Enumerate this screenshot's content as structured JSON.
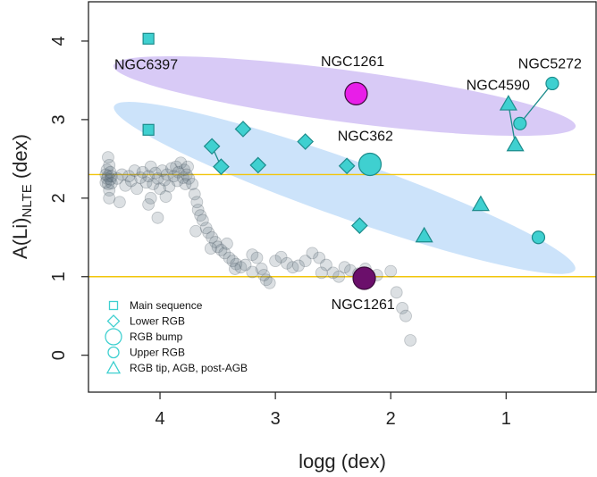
{
  "chart_data": {
    "type": "scatter",
    "xlabel": "logg (dex)",
    "ylabel_main": "A(Li)",
    "ylabel_sub": "NLTE",
    "ylabel_unit": " (dex)",
    "xlim": [
      4.62,
      0.22
    ],
    "ylim": [
      -0.47,
      4.5
    ],
    "x_ticks": [
      4,
      3,
      2,
      1
    ],
    "y_ticks": [
      0,
      1,
      2,
      3,
      4
    ],
    "reference_lines": [
      2.3,
      1.0
    ],
    "colors": {
      "cyan": "#3fd0d0",
      "cyan_edge": "#1c8c8c",
      "magenta": "#e81ee8",
      "purple": "#6b0f6b",
      "gray": "#5e7280",
      "purple_band": "#c9b5f3",
      "blue_band": "#b9d8f8",
      "ref_line": "#f2c50a"
    },
    "bands": [
      {
        "name": "purple-band",
        "cx": 2.4,
        "cy": 3.3,
        "rx": 2.02,
        "ry": 0.33,
        "tilt_deg": 7.5
      },
      {
        "name": "blue-band",
        "cx": 2.4,
        "cy": 2.13,
        "rx": 2.12,
        "ry": 0.37,
        "tilt_deg": 19.5
      }
    ],
    "background_stars": [
      [
        4.47,
        2.3
      ],
      [
        4.47,
        2.2
      ],
      [
        4.46,
        2.36
      ],
      [
        4.46,
        2.25
      ],
      [
        4.45,
        2.28
      ],
      [
        4.45,
        2.18
      ],
      [
        4.44,
        2.42
      ],
      [
        4.44,
        2.1
      ],
      [
        4.43,
        2.24
      ],
      [
        4.43,
        2.33
      ],
      [
        4.45,
        2.52
      ],
      [
        4.44,
        2.0
      ],
      [
        4.42,
        2.28
      ],
      [
        4.42,
        2.19
      ],
      [
        4.37,
        2.25
      ],
      [
        4.33,
        2.3
      ],
      [
        4.3,
        2.16
      ],
      [
        4.27,
        2.28
      ],
      [
        4.25,
        2.22
      ],
      [
        4.22,
        2.35
      ],
      [
        4.2,
        2.12
      ],
      [
        4.17,
        2.26
      ],
      [
        4.15,
        2.33
      ],
      [
        4.12,
        2.2
      ],
      [
        4.1,
        2.28
      ],
      [
        4.08,
        2.4
      ],
      [
        4.06,
        2.18
      ],
      [
        4.04,
        2.32
      ],
      [
        4.02,
        2.25
      ],
      [
        4.0,
        2.12
      ],
      [
        3.98,
        2.35
      ],
      [
        3.96,
        2.23
      ],
      [
        3.94,
        2.3
      ],
      [
        3.92,
        2.15
      ],
      [
        3.9,
        2.38
      ],
      [
        3.88,
        2.28
      ],
      [
        3.86,
        2.4
      ],
      [
        3.85,
        2.22
      ],
      [
        3.84,
        2.33
      ],
      [
        3.82,
        2.45
      ],
      [
        3.8,
        2.26
      ],
      [
        3.79,
        2.36
      ],
      [
        3.78,
        2.18
      ],
      [
        3.77,
        2.3
      ],
      [
        3.76,
        2.4
      ],
      [
        3.75,
        2.25
      ],
      [
        4.08,
        2.0
      ],
      [
        3.95,
        2.02
      ],
      [
        4.02,
        1.75
      ],
      [
        4.35,
        1.95
      ],
      [
        4.1,
        1.92
      ],
      [
        3.72,
        2.18
      ],
      [
        3.7,
        2.05
      ],
      [
        3.68,
        1.95
      ],
      [
        3.67,
        1.85
      ],
      [
        3.65,
        1.78
      ],
      [
        3.63,
        1.72
      ],
      [
        3.6,
        1.62
      ],
      [
        3.58,
        1.56
      ],
      [
        3.55,
        1.5
      ],
      [
        3.52,
        1.44
      ],
      [
        3.5,
        1.38
      ],
      [
        3.47,
        1.34
      ],
      [
        3.44,
        1.3
      ],
      [
        3.4,
        1.24
      ],
      [
        3.37,
        1.2
      ],
      [
        3.34,
        1.16
      ],
      [
        3.3,
        1.12
      ],
      [
        3.26,
        1.15
      ],
      [
        3.2,
        1.28
      ],
      [
        3.16,
        1.24
      ],
      [
        3.12,
        1.1
      ],
      [
        3.08,
        0.96
      ],
      [
        3.05,
        0.92
      ],
      [
        3.0,
        1.2
      ],
      [
        2.95,
        1.25
      ],
      [
        2.9,
        1.17
      ],
      [
        2.85,
        1.12
      ],
      [
        2.8,
        1.14
      ],
      [
        2.74,
        1.2
      ],
      [
        2.68,
        1.3
      ],
      [
        2.62,
        1.24
      ],
      [
        2.56,
        1.15
      ],
      [
        2.5,
        1.05
      ],
      [
        2.45,
        1.0
      ],
      [
        2.4,
        1.12
      ],
      [
        2.35,
        1.08
      ],
      [
        2.28,
        1.04
      ],
      [
        2.22,
        1.1
      ],
      [
        2.12,
        1.02
      ],
      [
        1.95,
        0.8
      ],
      [
        1.9,
        0.6
      ],
      [
        1.87,
        0.5
      ],
      [
        1.83,
        0.19
      ],
      [
        3.69,
        1.58
      ],
      [
        3.56,
        1.36
      ],
      [
        3.1,
        1.02
      ],
      [
        2.0,
        1.07
      ],
      [
        2.6,
        1.05
      ],
      [
        3.42,
        1.42
      ],
      [
        3.35,
        1.1
      ],
      [
        3.2,
        1.06
      ]
    ],
    "series": [
      {
        "name": "Main sequence",
        "marker": "square",
        "points": [
          [
            4.1,
            4.03
          ],
          [
            4.1,
            2.87
          ]
        ]
      },
      {
        "name": "Lower RGB",
        "marker": "diamond",
        "points": [
          [
            3.55,
            2.66
          ],
          [
            3.47,
            2.4
          ],
          [
            3.28,
            2.88
          ],
          [
            3.15,
            2.42
          ],
          [
            2.74,
            2.72
          ],
          [
            2.38,
            2.41
          ],
          [
            2.27,
            1.65
          ]
        ]
      },
      {
        "name": "RGB bump",
        "marker": "circle-large",
        "points": [
          [
            2.18,
            2.43
          ]
        ]
      },
      {
        "name": "Upper RGB",
        "marker": "circle",
        "points": [
          [
            0.88,
            2.95
          ],
          [
            0.6,
            3.46
          ],
          [
            0.72,
            1.5
          ]
        ]
      },
      {
        "name": "RGB tip, AGB, post-AGB",
        "marker": "triangle",
        "points": [
          [
            0.98,
            3.2
          ],
          [
            0.92,
            2.68
          ],
          [
            1.71,
            1.52
          ],
          [
            1.22,
            1.92
          ]
        ]
      }
    ],
    "links": [
      [
        [
          3.55,
          2.66
        ],
        [
          3.47,
          2.4
        ]
      ],
      [
        [
          0.6,
          3.46
        ],
        [
          0.88,
          2.95
        ]
      ],
      [
        [
          0.98,
          3.2
        ],
        [
          0.92,
          2.68
        ]
      ]
    ],
    "highlights": [
      {
        "name": "NGC1261",
        "x": 2.3,
        "y": 3.33,
        "color": "magenta",
        "label": "NGC1261"
      },
      {
        "name": "NGC1261",
        "x": 2.23,
        "y": 0.98,
        "color": "purple",
        "label": "NGC1261"
      }
    ],
    "annotations": [
      {
        "text": "NGC6397",
        "x": 4.12,
        "y": 3.64
      },
      {
        "text": "NGC1261",
        "x": 2.33,
        "y": 3.68
      },
      {
        "text": "NGC5272",
        "x": 0.62,
        "y": 3.65
      },
      {
        "text": "NGC4590",
        "x": 1.07,
        "y": 3.38
      },
      {
        "text": "NGC362",
        "x": 2.22,
        "y": 2.73
      },
      {
        "text": "NGC1261",
        "x": 2.24,
        "y": 0.59
      }
    ],
    "legend": {
      "position": "bottom-left",
      "entries": [
        {
          "label": "Main sequence",
          "marker": "square"
        },
        {
          "label": "Lower RGB",
          "marker": "diamond"
        },
        {
          "label": "RGB bump",
          "marker": "circle-large"
        },
        {
          "label": "Upper RGB",
          "marker": "circle"
        },
        {
          "label": "RGB tip, AGB, post-AGB",
          "marker": "triangle"
        }
      ]
    }
  }
}
